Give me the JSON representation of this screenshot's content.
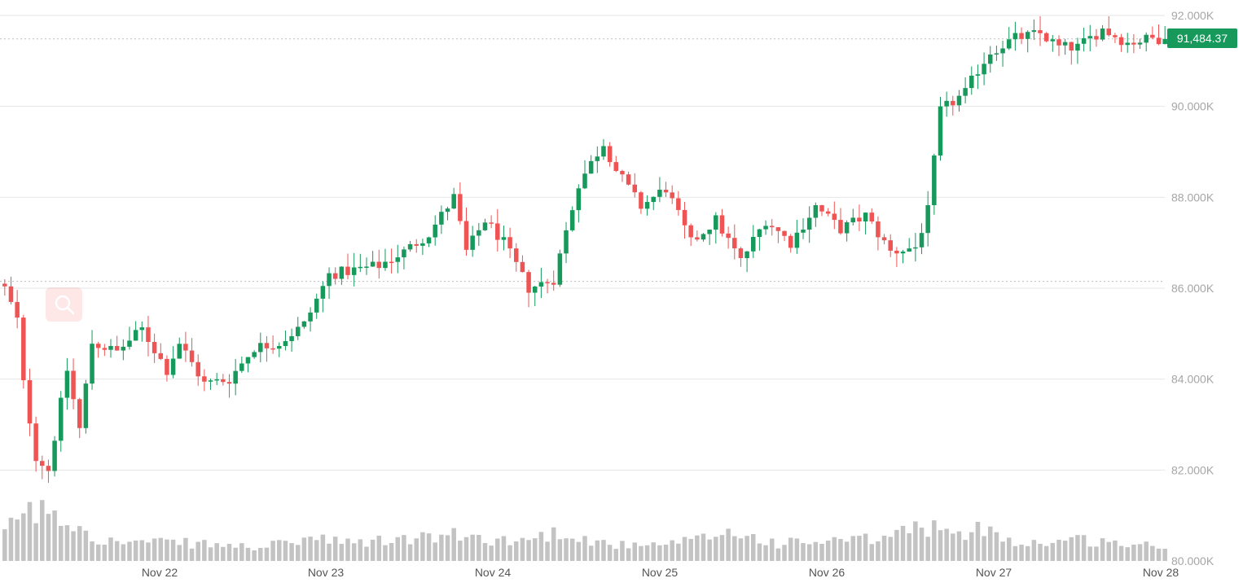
{
  "chart_data": {
    "type": "candlestick",
    "y_axis": {
      "ticks": [
        "92.000K",
        "90.000K",
        "88.000K",
        "86.000K",
        "84.000K",
        "82.000K",
        "80.000K"
      ],
      "tick_values": [
        92000,
        90000,
        88000,
        86000,
        84000,
        82000,
        80000
      ],
      "ylim": [
        80000,
        92300
      ]
    },
    "x_axis": {
      "ticks": [
        "Nov 22",
        "Nov 23",
        "Nov 24",
        "Nov 25",
        "Nov 26",
        "Nov 27",
        "Nov 28"
      ]
    },
    "last_price": 91484.37,
    "last_price_label": "91,484.37",
    "reference_line": 86150,
    "colors": {
      "up": "#16995b",
      "down": "#ef5454",
      "grid": "#e6e6e6",
      "volume": "#c3c3c3",
      "axis_text": "#a6a6a6",
      "price_tag": "#16995b"
    },
    "grid": true,
    "volume_bars": true,
    "zoom_icon": "magnifier-icon",
    "closes_anchors": [
      [
        0,
        86000
      ],
      [
        2,
        85300
      ],
      [
        3,
        83900
      ],
      [
        5,
        82300
      ],
      [
        7,
        82000
      ],
      [
        10,
        84200
      ],
      [
        12,
        82900
      ],
      [
        14,
        84800
      ],
      [
        18,
        84600
      ],
      [
        22,
        85100
      ],
      [
        26,
        84200
      ],
      [
        28,
        84800
      ],
      [
        32,
        83900
      ],
      [
        36,
        84000
      ],
      [
        40,
        84700
      ],
      [
        44,
        84800
      ],
      [
        48,
        85200
      ],
      [
        52,
        86300
      ],
      [
        56,
        86400
      ],
      [
        60,
        86500
      ],
      [
        64,
        86800
      ],
      [
        68,
        87200
      ],
      [
        72,
        88000
      ],
      [
        74,
        86800
      ],
      [
        77,
        87500
      ],
      [
        80,
        87000
      ],
      [
        84,
        86000
      ],
      [
        88,
        86200
      ],
      [
        92,
        88300
      ],
      [
        96,
        89200
      ],
      [
        98,
        88600
      ],
      [
        102,
        87800
      ],
      [
        106,
        88200
      ],
      [
        110,
        87000
      ],
      [
        114,
        87500
      ],
      [
        118,
        86600
      ],
      [
        122,
        87500
      ],
      [
        126,
        87000
      ],
      [
        130,
        87800
      ],
      [
        134,
        87300
      ],
      [
        138,
        87600
      ],
      [
        142,
        86800
      ],
      [
        146,
        86900
      ],
      [
        148,
        87700
      ],
      [
        150,
        89900
      ],
      [
        154,
        90300
      ],
      [
        156,
        90800
      ],
      [
        158,
        91200
      ],
      [
        162,
        91500
      ],
      [
        166,
        91600
      ],
      [
        169,
        91300
      ],
      [
        172,
        91300
      ],
      [
        176,
        91700
      ],
      [
        180,
        91400
      ],
      [
        184,
        91500
      ],
      [
        186,
        91484
      ]
    ],
    "volume_anchors": [
      [
        0,
        0.25
      ],
      [
        3,
        0.58
      ],
      [
        5,
        0.42
      ],
      [
        7,
        0.6
      ],
      [
        9,
        0.43
      ],
      [
        12,
        0.38
      ],
      [
        14,
        0.28
      ],
      [
        16,
        0.2
      ],
      [
        30,
        0.18
      ],
      [
        40,
        0.14
      ],
      [
        46,
        0.18
      ],
      [
        48,
        0.24
      ],
      [
        55,
        0.18
      ],
      [
        72,
        0.26
      ],
      [
        82,
        0.2
      ],
      [
        90,
        0.31
      ],
      [
        94,
        0.2
      ],
      [
        102,
        0.14
      ],
      [
        110,
        0.2
      ],
      [
        116,
        0.3
      ],
      [
        124,
        0.18
      ],
      [
        140,
        0.22
      ],
      [
        146,
        0.34
      ],
      [
        150,
        0.36
      ],
      [
        152,
        0.22
      ],
      [
        158,
        0.37
      ],
      [
        162,
        0.17
      ],
      [
        172,
        0.22
      ],
      [
        186,
        0.14
      ]
    ],
    "candle_count": 187,
    "start_value": 86100
  }
}
